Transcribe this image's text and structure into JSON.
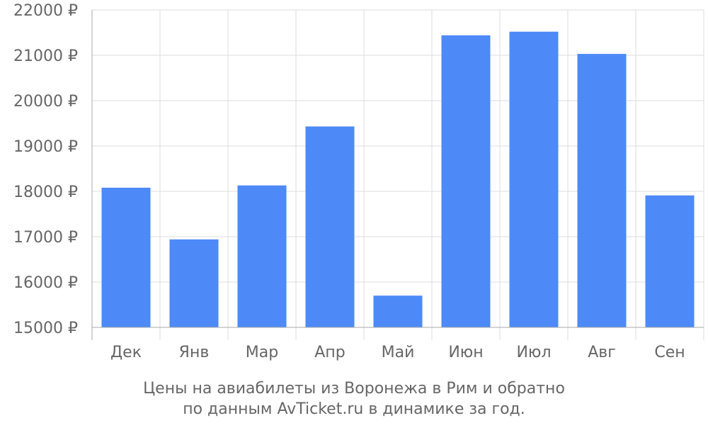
{
  "chart_data": {
    "type": "bar",
    "categories": [
      "Дек",
      "Янв",
      "Мар",
      "Апр",
      "Май",
      "Июн",
      "Июл",
      "Авг",
      "Сен"
    ],
    "series": [
      {
        "values": [
          18080,
          16940,
          18130,
          19430,
          15700,
          21440,
          21520,
          21030,
          17910
        ]
      }
    ],
    "ylim": [
      15000,
      22000
    ],
    "yticks": [
      15000,
      16000,
      17000,
      18000,
      19000,
      20000,
      21000,
      22000
    ],
    "ytick_suffix": " ₽",
    "grid": true,
    "legend": "none",
    "title": "",
    "xlabel": "",
    "ylabel": ""
  },
  "caption": {
    "line1": "Цены на авиабилеты из Воронежа в Рим и обратно",
    "line2": "по данным AvTicket.ru в динамике за год."
  },
  "colors": {
    "bar": "#4d8af8",
    "grid": "#dddddd",
    "axis": "#aaaaaa",
    "text": "#666666"
  }
}
